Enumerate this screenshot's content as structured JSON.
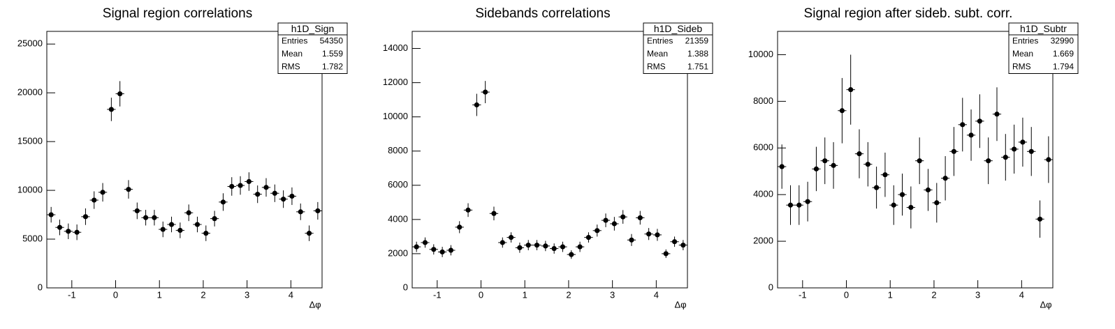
{
  "chart_data": [
    {
      "type": "histogram",
      "title": "Signal region correlations",
      "xlabel": "Δφ",
      "color": "#000000",
      "bins": [
        -1.571,
        -1.374,
        -1.178,
        -0.982,
        -0.785,
        -0.589,
        -0.393,
        -0.196,
        0,
        0.196,
        0.393,
        0.589,
        0.785,
        0.982,
        1.178,
        1.374,
        1.571,
        1.767,
        1.963,
        2.16,
        2.356,
        2.553,
        2.749,
        2.945,
        3.142,
        3.338,
        3.534,
        3.731,
        3.927,
        4.123,
        4.32,
        4.516,
        4.712
      ],
      "values": [
        7500,
        6200,
        5800,
        5700,
        7300,
        9000,
        9800,
        18300,
        19900,
        10100,
        7900,
        7200,
        7200,
        6000,
        6500,
        5900,
        7700,
        6500,
        5600,
        7100,
        8800,
        10400,
        10500,
        10900,
        9600,
        10300,
        9700,
        9100,
        9400,
        7800,
        5600,
        7900
      ],
      "errors": [
        800,
        800,
        800,
        800,
        850,
        900,
        950,
        1200,
        1300,
        950,
        850,
        800,
        800,
        800,
        800,
        800,
        850,
        800,
        800,
        800,
        900,
        950,
        950,
        950,
        900,
        950,
        900,
        900,
        900,
        850,
        800,
        900
      ],
      "xlim": [
        -1.571,
        4.712
      ],
      "xticks": [
        -1,
        0,
        1,
        2,
        3,
        4
      ],
      "ylim": [
        0,
        26300
      ],
      "yticks": [
        0,
        5000,
        10000,
        15000,
        20000,
        25000
      ],
      "stats": {
        "title": "h1D_Sign",
        "rows": [
          [
            "Entries",
            54350
          ],
          [
            "Mean",
            1.559
          ],
          [
            "RMS",
            1.782
          ]
        ]
      }
    },
    {
      "type": "histogram",
      "title": "Sidebands correlations",
      "xlabel": "Δφ",
      "color": "#000000",
      "bins": [
        -1.571,
        -1.374,
        -1.178,
        -0.982,
        -0.785,
        -0.589,
        -0.393,
        -0.196,
        0,
        0.196,
        0.393,
        0.589,
        0.785,
        0.982,
        1.178,
        1.374,
        1.571,
        1.767,
        1.963,
        2.16,
        2.356,
        2.553,
        2.749,
        2.945,
        3.142,
        3.338,
        3.534,
        3.731,
        3.927,
        4.123,
        4.32,
        4.516,
        4.712
      ],
      "values": [
        2400,
        2650,
        2250,
        2100,
        2200,
        3550,
        4550,
        10700,
        11450,
        4350,
        2650,
        2950,
        2350,
        2500,
        2500,
        2450,
        2300,
        2400,
        1950,
        2400,
        2950,
        3350,
        3950,
        3750,
        4150,
        2800,
        4100,
        3150,
        3100,
        2000,
        2700,
        2500
      ],
      "errors": [
        300,
        300,
        300,
        300,
        300,
        350,
        400,
        650,
        650,
        400,
        300,
        300,
        300,
        300,
        300,
        300,
        300,
        300,
        250,
        300,
        300,
        350,
        400,
        400,
        400,
        350,
        400,
        350,
        350,
        250,
        300,
        300
      ],
      "xlim": [
        -1.571,
        4.712
      ],
      "xticks": [
        -1,
        0,
        1,
        2,
        3,
        4
      ],
      "ylim": [
        0,
        15000
      ],
      "yticks": [
        0,
        2000,
        4000,
        6000,
        8000,
        10000,
        12000,
        14000
      ],
      "stats": {
        "title": "h1D_Sideb",
        "rows": [
          [
            "Entries",
            21359
          ],
          [
            "Mean",
            1.388
          ],
          [
            "RMS",
            1.751
          ]
        ]
      }
    },
    {
      "type": "histogram",
      "title": "Signal region after sideb. subt. corr.",
      "xlabel": "Δφ",
      "color": "#000000",
      "bins": [
        -1.571,
        -1.374,
        -1.178,
        -0.982,
        -0.785,
        -0.589,
        -0.393,
        -0.196,
        0,
        0.196,
        0.393,
        0.589,
        0.785,
        0.982,
        1.178,
        1.374,
        1.571,
        1.767,
        1.963,
        2.16,
        2.356,
        2.553,
        2.749,
        2.945,
        3.142,
        3.338,
        3.534,
        3.731,
        3.927,
        4.123,
        4.32,
        4.516,
        4.712
      ],
      "values": [
        5200,
        3550,
        3550,
        3700,
        5100,
        5450,
        5250,
        7600,
        8500,
        5750,
        5300,
        4300,
        4850,
        3550,
        4000,
        3450,
        5450,
        4200,
        3650,
        4700,
        5850,
        7000,
        6550,
        7150,
        5450,
        7450,
        5600,
        5950,
        6250,
        5850,
        2950,
        5500
      ],
      "errors": [
        950,
        850,
        850,
        850,
        950,
        1000,
        1000,
        1400,
        1500,
        1050,
        950,
        900,
        950,
        850,
        900,
        900,
        1000,
        900,
        850,
        950,
        1050,
        1150,
        1100,
        1150,
        1000,
        1150,
        1000,
        1050,
        1050,
        1050,
        800,
        1000
      ],
      "xlim": [
        -1.571,
        4.712
      ],
      "xticks": [
        -1,
        0,
        1,
        2,
        3,
        4
      ],
      "ylim": [
        0,
        11000
      ],
      "yticks": [
        0,
        2000,
        4000,
        6000,
        8000,
        10000
      ],
      "stats": {
        "title": "h1D_Subtr",
        "rows": [
          [
            "Entries",
            32990
          ],
          [
            "Mean",
            1.669
          ],
          [
            "RMS",
            1.794
          ]
        ]
      }
    }
  ]
}
